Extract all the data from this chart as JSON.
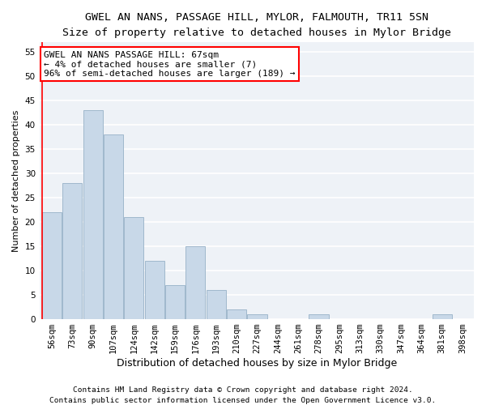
{
  "title": "GWEL AN NANS, PASSAGE HILL, MYLOR, FALMOUTH, TR11 5SN",
  "subtitle": "Size of property relative to detached houses in Mylor Bridge",
  "xlabel": "Distribution of detached houses by size in Mylor Bridge",
  "ylabel": "Number of detached properties",
  "footnote1": "Contains HM Land Registry data © Crown copyright and database right 2024.",
  "footnote2": "Contains public sector information licensed under the Open Government Licence v3.0.",
  "bin_labels": [
    "56sqm",
    "73sqm",
    "90sqm",
    "107sqm",
    "124sqm",
    "142sqm",
    "159sqm",
    "176sqm",
    "193sqm",
    "210sqm",
    "227sqm",
    "244sqm",
    "261sqm",
    "278sqm",
    "295sqm",
    "313sqm",
    "330sqm",
    "347sqm",
    "364sqm",
    "381sqm",
    "398sqm"
  ],
  "bar_values": [
    22,
    28,
    43,
    38,
    21,
    12,
    7,
    15,
    6,
    2,
    1,
    0,
    0,
    1,
    0,
    0,
    0,
    0,
    0,
    1,
    0
  ],
  "bar_color": "#c8d8e8",
  "bar_edgecolor": "#a0b8cc",
  "ylim": [
    0,
    57
  ],
  "yticks": [
    0,
    5,
    10,
    15,
    20,
    25,
    30,
    35,
    40,
    45,
    50,
    55
  ],
  "annotation_line1": "GWEL AN NANS PASSAGE HILL: 67sqm",
  "annotation_line2": "← 4% of detached houses are smaller (7)",
  "annotation_line3": "96% of semi-detached houses are larger (189) →",
  "background_color": "#eef2f7",
  "grid_color": "#ffffff",
  "title_fontsize": 9.5,
  "subtitle_fontsize": 8.5,
  "xlabel_fontsize": 9,
  "ylabel_fontsize": 8,
  "tick_fontsize": 7.5,
  "annotation_fontsize": 8,
  "footnote_fontsize": 6.8
}
